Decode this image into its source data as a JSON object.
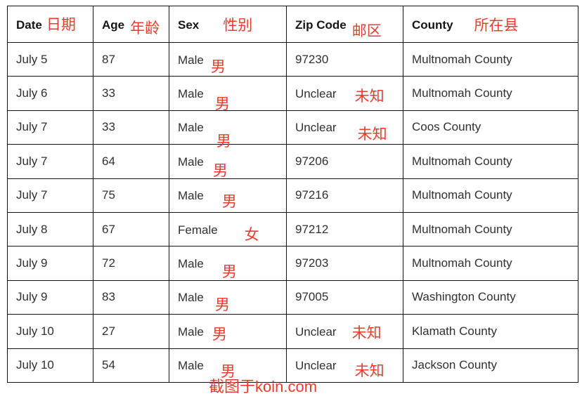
{
  "table": {
    "columns": [
      {
        "en": "Date",
        "zh": "日期"
      },
      {
        "en": "Age",
        "zh": "年龄"
      },
      {
        "en": "Sex",
        "zh": "性别"
      },
      {
        "en": "Zip Code",
        "zh": "邮区"
      },
      {
        "en": "County",
        "zh": "所在县"
      }
    ],
    "rows": [
      {
        "date": "July 5",
        "age": "87",
        "sex": "Male",
        "sex_zh": "男",
        "zip": "97230",
        "zip_zh": "",
        "county": "Multnomah County"
      },
      {
        "date": "July 6",
        "age": "33",
        "sex": "Male",
        "sex_zh": "男",
        "zip": "Unclear",
        "zip_zh": "未知",
        "county": "Multnomah County"
      },
      {
        "date": "July 7",
        "age": "33",
        "sex": "Male",
        "sex_zh": "男",
        "zip": "Unclear",
        "zip_zh": "未知",
        "county": "Coos County"
      },
      {
        "date": "July 7",
        "age": "64",
        "sex": "Male",
        "sex_zh": "男",
        "zip": "97206",
        "zip_zh": "",
        "county": "Multnomah County"
      },
      {
        "date": "July 7",
        "age": "75",
        "sex": "Male",
        "sex_zh": "男",
        "zip": "97216",
        "zip_zh": "",
        "county": "Multnomah County"
      },
      {
        "date": "July 8",
        "age": "67",
        "sex": "Female",
        "sex_zh": "女",
        "zip": "97212",
        "zip_zh": "",
        "county": "Multnomah County"
      },
      {
        "date": "July 9",
        "age": "72",
        "sex": "Male",
        "sex_zh": "男",
        "zip": "97203",
        "zip_zh": "",
        "county": "Multnomah County"
      },
      {
        "date": "July 9",
        "age": "83",
        "sex": "Male",
        "sex_zh": "男",
        "zip": "97005",
        "zip_zh": "",
        "county": "Washington County"
      },
      {
        "date": "July 10",
        "age": "27",
        "sex": "Male",
        "sex_zh": "男",
        "zip": "Unclear",
        "zip_zh": "未知",
        "county": "Klamath County"
      },
      {
        "date": "July 10",
        "age": "54",
        "sex": "Male",
        "sex_zh": "男",
        "zip": "Unclear",
        "zip_zh": "未知",
        "county": "Jackson County"
      }
    ]
  },
  "watermark": "截图于koin.com",
  "colors": {
    "annotation_red": "#e83c2d",
    "body_text": "#303030",
    "header_text": "#151515",
    "border": "#141414"
  }
}
